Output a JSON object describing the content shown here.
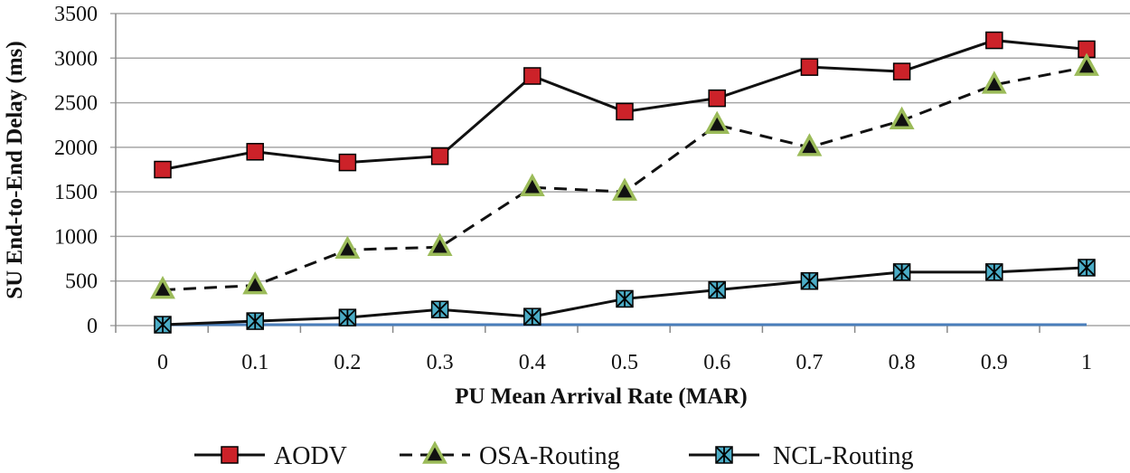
{
  "chart_data": {
    "type": "line",
    "title": "",
    "xlabel": "PU Mean Arrival Rate (MAR)",
    "ylabel": "SU End-to-End Delay (ms)",
    "categories": [
      "0",
      "0.1",
      "0.2",
      "0.3",
      "0.4",
      "0.5",
      "0.6",
      "0.7",
      "0.8",
      "0.9",
      "1"
    ],
    "ylim": [
      0,
      3500
    ],
    "yticks": [
      "0",
      "500",
      "1000",
      "1500",
      "2000",
      "2500",
      "3000",
      "3500"
    ],
    "ytick_values": [
      0,
      500,
      1000,
      1500,
      2000,
      2500,
      3000,
      3500
    ],
    "grid": true,
    "legend_position": "bottom",
    "series": [
      {
        "name": "AODV",
        "values": [
          1750,
          1950,
          1830,
          1900,
          2800,
          2400,
          2550,
          2900,
          2850,
          3200,
          3100
        ],
        "line_style": "solid",
        "marker": "square",
        "color": "#cc2229"
      },
      {
        "name": "OSA-Routing",
        "values": [
          400,
          450,
          850,
          880,
          1550,
          1500,
          2250,
          2000,
          2300,
          2700,
          2900
        ],
        "line_style": "dashed",
        "marker": "triangle",
        "color": "#9bbb59"
      },
      {
        "name": "NCL-Routing",
        "values": [
          10,
          50,
          90,
          180,
          100,
          300,
          400,
          500,
          600,
          600,
          650
        ],
        "line_style": "solid",
        "marker": "x-square",
        "color": "#4bacc6"
      }
    ],
    "baseline_color": "#4a7ebb"
  }
}
